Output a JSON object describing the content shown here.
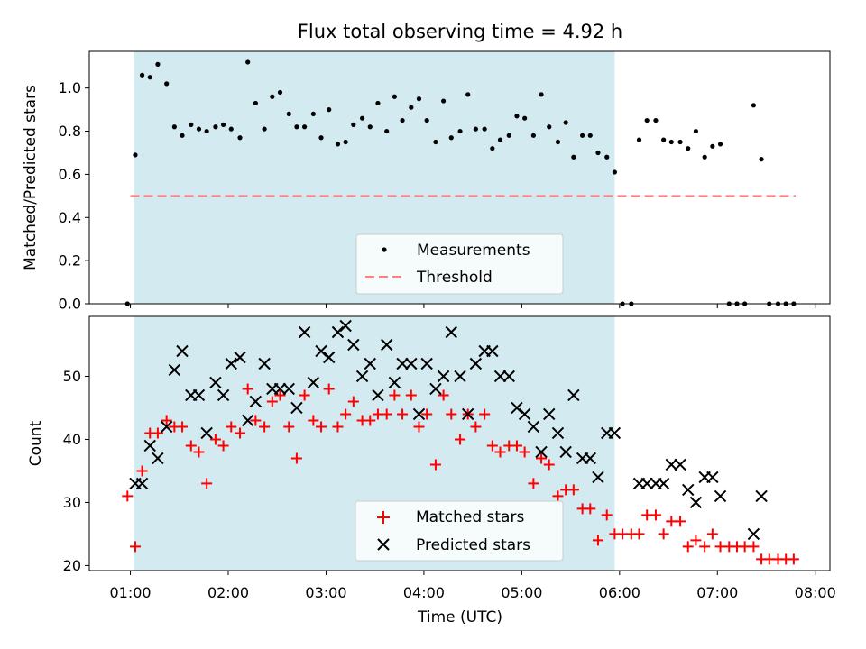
{
  "chart_data": [
    {
      "type": "scatter",
      "panel": "top",
      "title": "Flux total observing time = 4.92 h",
      "xlabel": "",
      "ylabel": "Matched/Predicted stars",
      "ylim": [
        0,
        1.17
      ],
      "yticks": [
        0.0,
        0.2,
        0.4,
        0.6,
        0.8,
        1.0
      ],
      "ytick_labels": [
        "0.0",
        "0.2",
        "0.4",
        "0.6",
        "0.8",
        "1.0"
      ],
      "xlim": [
        0.58,
        8.15
      ],
      "shaded_interval": [
        1.033,
        5.95
      ],
      "shade_color": "#d3eaf0",
      "threshold": {
        "label": "Threshold",
        "value": 0.5,
        "x_range": [
          1.0,
          7.8
        ],
        "color": "#ff7f7f"
      },
      "legend": [
        {
          "label": "Measurements",
          "marker": "dot"
        },
        {
          "label": "Threshold",
          "marker": "dashed-line"
        }
      ],
      "series": [
        {
          "name": "Measurements",
          "color": "#000000",
          "points": [
            [
              0.97,
              0.0
            ],
            [
              1.05,
              0.69
            ],
            [
              1.12,
              1.06
            ],
            [
              1.2,
              1.05
            ],
            [
              1.28,
              1.11
            ],
            [
              1.37,
              1.02
            ],
            [
              1.45,
              0.82
            ],
            [
              1.53,
              0.78
            ],
            [
              1.62,
              0.83
            ],
            [
              1.7,
              0.81
            ],
            [
              1.78,
              0.8
            ],
            [
              1.87,
              0.82
            ],
            [
              1.95,
              0.83
            ],
            [
              2.03,
              0.81
            ],
            [
              2.12,
              0.77
            ],
            [
              2.2,
              1.12
            ],
            [
              2.28,
              0.93
            ],
            [
              2.37,
              0.81
            ],
            [
              2.45,
              0.96
            ],
            [
              2.53,
              0.98
            ],
            [
              2.62,
              0.88
            ],
            [
              2.7,
              0.82
            ],
            [
              2.78,
              0.82
            ],
            [
              2.87,
              0.88
            ],
            [
              2.95,
              0.77
            ],
            [
              3.03,
              0.9
            ],
            [
              3.12,
              0.74
            ],
            [
              3.2,
              0.75
            ],
            [
              3.28,
              0.83
            ],
            [
              3.37,
              0.86
            ],
            [
              3.45,
              0.82
            ],
            [
              3.53,
              0.93
            ],
            [
              3.62,
              0.8
            ],
            [
              3.7,
              0.96
            ],
            [
              3.78,
              0.85
            ],
            [
              3.87,
              0.91
            ],
            [
              3.95,
              0.95
            ],
            [
              4.03,
              0.85
            ],
            [
              4.12,
              0.75
            ],
            [
              4.2,
              0.94
            ],
            [
              4.28,
              0.77
            ],
            [
              4.37,
              0.8
            ],
            [
              4.45,
              0.97
            ],
            [
              4.53,
              0.81
            ],
            [
              4.62,
              0.81
            ],
            [
              4.7,
              0.72
            ],
            [
              4.78,
              0.76
            ],
            [
              4.87,
              0.78
            ],
            [
              4.95,
              0.87
            ],
            [
              5.03,
              0.86
            ],
            [
              5.12,
              0.78
            ],
            [
              5.2,
              0.97
            ],
            [
              5.28,
              0.82
            ],
            [
              5.37,
              0.75
            ],
            [
              5.45,
              0.84
            ],
            [
              5.53,
              0.68
            ],
            [
              5.62,
              0.78
            ],
            [
              5.7,
              0.78
            ],
            [
              5.78,
              0.7
            ],
            [
              5.87,
              0.68
            ],
            [
              5.95,
              0.61
            ],
            [
              6.03,
              0.0
            ],
            [
              6.12,
              0.0
            ],
            [
              6.2,
              0.76
            ],
            [
              6.28,
              0.85
            ],
            [
              6.37,
              0.85
            ],
            [
              6.45,
              0.76
            ],
            [
              6.53,
              0.75
            ],
            [
              6.62,
              0.75
            ],
            [
              6.7,
              0.72
            ],
            [
              6.78,
              0.8
            ],
            [
              6.87,
              0.68
            ],
            [
              6.95,
              0.73
            ],
            [
              7.03,
              0.74
            ],
            [
              7.12,
              0.0
            ],
            [
              7.2,
              0.0
            ],
            [
              7.28,
              0.0
            ],
            [
              7.37,
              0.92
            ],
            [
              7.45,
              0.67
            ],
            [
              7.53,
              0.0
            ],
            [
              7.62,
              0.0
            ],
            [
              7.7,
              0.0
            ],
            [
              7.78,
              0.0
            ]
          ]
        }
      ]
    },
    {
      "type": "scatter",
      "panel": "bottom",
      "title": "",
      "xlabel": "Time (UTC)",
      "ylabel": "Count",
      "ylim": [
        19.2,
        59.5
      ],
      "yticks": [
        20,
        30,
        40,
        50
      ],
      "ytick_labels": [
        "20",
        "30",
        "40",
        "50"
      ],
      "xlim": [
        0.58,
        8.15
      ],
      "xticks": [
        1,
        2,
        3,
        4,
        5,
        6,
        7,
        8
      ],
      "xtick_labels": [
        "01:00",
        "02:00",
        "03:00",
        "04:00",
        "05:00",
        "06:00",
        "07:00",
        "08:00"
      ],
      "shaded_interval": [
        1.033,
        5.95
      ],
      "shade_color": "#d3eaf0",
      "legend": [
        {
          "label": "Matched stars",
          "marker": "plus",
          "color": "#ff0000"
        },
        {
          "label": "Predicted stars",
          "marker": "x",
          "color": "#000000"
        }
      ],
      "series": [
        {
          "name": "Matched stars",
          "marker": "plus",
          "color": "#ff0000",
          "points": [
            [
              0.97,
              31
            ],
            [
              1.05,
              23
            ],
            [
              1.12,
              35
            ],
            [
              1.2,
              41
            ],
            [
              1.28,
              41
            ],
            [
              1.37,
              43
            ],
            [
              1.45,
              42
            ],
            [
              1.53,
              42
            ],
            [
              1.62,
              39
            ],
            [
              1.7,
              38
            ],
            [
              1.78,
              33
            ],
            [
              1.87,
              40
            ],
            [
              1.95,
              39
            ],
            [
              2.03,
              42
            ],
            [
              2.12,
              41
            ],
            [
              2.2,
              48
            ],
            [
              2.28,
              43
            ],
            [
              2.37,
              42
            ],
            [
              2.45,
              46
            ],
            [
              2.53,
              47
            ],
            [
              2.62,
              42
            ],
            [
              2.7,
              37
            ],
            [
              2.78,
              47
            ],
            [
              2.87,
              43
            ],
            [
              2.95,
              42
            ],
            [
              3.03,
              48
            ],
            [
              3.12,
              42
            ],
            [
              3.2,
              44
            ],
            [
              3.28,
              46
            ],
            [
              3.37,
              43
            ],
            [
              3.45,
              43
            ],
            [
              3.53,
              44
            ],
            [
              3.62,
              44
            ],
            [
              3.7,
              47
            ],
            [
              3.78,
              44
            ],
            [
              3.87,
              47
            ],
            [
              3.95,
              42
            ],
            [
              4.03,
              44
            ],
            [
              4.12,
              36
            ],
            [
              4.2,
              47
            ],
            [
              4.28,
              44
            ],
            [
              4.37,
              40
            ],
            [
              4.45,
              44
            ],
            [
              4.53,
              42
            ],
            [
              4.62,
              44
            ],
            [
              4.7,
              39
            ],
            [
              4.78,
              38
            ],
            [
              4.87,
              39
            ],
            [
              4.95,
              39
            ],
            [
              5.03,
              38
            ],
            [
              5.12,
              33
            ],
            [
              5.2,
              37
            ],
            [
              5.28,
              36
            ],
            [
              5.37,
              31
            ],
            [
              5.45,
              32
            ],
            [
              5.53,
              32
            ],
            [
              5.62,
              29
            ],
            [
              5.7,
              29
            ],
            [
              5.78,
              24
            ],
            [
              5.87,
              28
            ],
            [
              5.95,
              25
            ],
            [
              6.03,
              25
            ],
            [
              6.12,
              25
            ],
            [
              6.2,
              25
            ],
            [
              6.28,
              28
            ],
            [
              6.37,
              28
            ],
            [
              6.45,
              25
            ],
            [
              6.53,
              27
            ],
            [
              6.62,
              27
            ],
            [
              6.7,
              23
            ],
            [
              6.78,
              24
            ],
            [
              6.87,
              23
            ],
            [
              6.95,
              25
            ],
            [
              7.03,
              23
            ],
            [
              7.12,
              23
            ],
            [
              7.2,
              23
            ],
            [
              7.28,
              23
            ],
            [
              7.37,
              23
            ],
            [
              7.45,
              21
            ],
            [
              7.53,
              21
            ],
            [
              7.62,
              21
            ],
            [
              7.7,
              21
            ],
            [
              7.78,
              21
            ]
          ]
        },
        {
          "name": "Predicted stars",
          "marker": "x",
          "color": "#000000",
          "points": [
            [
              1.05,
              33
            ],
            [
              1.12,
              33
            ],
            [
              1.2,
              39
            ],
            [
              1.28,
              37
            ],
            [
              1.37,
              42
            ],
            [
              1.45,
              51
            ],
            [
              1.53,
              54
            ],
            [
              1.62,
              47
            ],
            [
              1.7,
              47
            ],
            [
              1.78,
              41
            ],
            [
              1.87,
              49
            ],
            [
              1.95,
              47
            ],
            [
              2.03,
              52
            ],
            [
              2.12,
              53
            ],
            [
              2.2,
              43
            ],
            [
              2.28,
              46
            ],
            [
              2.37,
              52
            ],
            [
              2.45,
              48
            ],
            [
              2.53,
              48
            ],
            [
              2.62,
              48
            ],
            [
              2.7,
              45
            ],
            [
              2.78,
              57
            ],
            [
              2.87,
              49
            ],
            [
              2.95,
              54
            ],
            [
              3.03,
              53
            ],
            [
              3.12,
              57
            ],
            [
              3.2,
              58
            ],
            [
              3.28,
              55
            ],
            [
              3.37,
              50
            ],
            [
              3.45,
              52
            ],
            [
              3.53,
              47
            ],
            [
              3.62,
              55
            ],
            [
              3.7,
              49
            ],
            [
              3.78,
              52
            ],
            [
              3.87,
              52
            ],
            [
              3.95,
              44
            ],
            [
              4.03,
              52
            ],
            [
              4.12,
              48
            ],
            [
              4.2,
              50
            ],
            [
              4.28,
              57
            ],
            [
              4.37,
              50
            ],
            [
              4.45,
              44
            ],
            [
              4.53,
              52
            ],
            [
              4.62,
              54
            ],
            [
              4.7,
              54
            ],
            [
              4.78,
              50
            ],
            [
              4.87,
              50
            ],
            [
              4.95,
              45
            ],
            [
              5.03,
              44
            ],
            [
              5.12,
              42
            ],
            [
              5.2,
              38
            ],
            [
              5.28,
              44
            ],
            [
              5.37,
              41
            ],
            [
              5.45,
              38
            ],
            [
              5.53,
              47
            ],
            [
              5.62,
              37
            ],
            [
              5.7,
              37
            ],
            [
              5.78,
              34
            ],
            [
              5.87,
              41
            ],
            [
              5.95,
              41
            ],
            [
              6.2,
              33
            ],
            [
              6.28,
              33
            ],
            [
              6.37,
              33
            ],
            [
              6.45,
              33
            ],
            [
              6.53,
              36
            ],
            [
              6.62,
              36
            ],
            [
              6.7,
              32
            ],
            [
              6.78,
              30
            ],
            [
              6.87,
              34
            ],
            [
              6.95,
              34
            ],
            [
              7.03,
              31
            ],
            [
              7.37,
              25
            ],
            [
              7.45,
              31
            ]
          ]
        }
      ]
    }
  ]
}
